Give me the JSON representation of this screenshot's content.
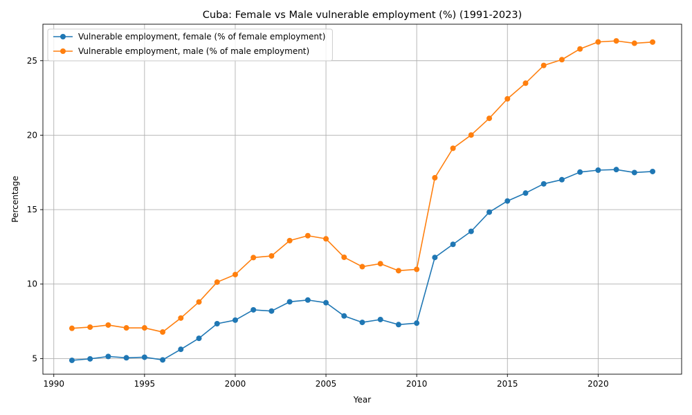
{
  "chart_data": {
    "type": "line",
    "title": "Cuba: Female vs Male vulnerable employment (%) (1991-2023)",
    "xlabel": "Year",
    "ylabel": "Percentage",
    "xlim": [
      1989.4,
      2024.6
    ],
    "ylim": [
      3.95,
      27.45
    ],
    "xticks": [
      1990,
      1995,
      2000,
      2005,
      2010,
      2015,
      2020
    ],
    "yticks": [
      5,
      10,
      15,
      20,
      25
    ],
    "grid": true,
    "legend_position": "top-left",
    "x": [
      1991,
      1992,
      1993,
      1994,
      1995,
      1996,
      1997,
      1998,
      1999,
      2000,
      2001,
      2002,
      2003,
      2004,
      2005,
      2006,
      2007,
      2008,
      2009,
      2010,
      2011,
      2012,
      2013,
      2014,
      2015,
      2016,
      2017,
      2018,
      2019,
      2020,
      2021,
      2022,
      2023
    ],
    "series": [
      {
        "name": "Vulnerable employment, female (% of female employment)",
        "color": "#1f77b4",
        "values": [
          4.88,
          4.98,
          5.14,
          5.05,
          5.09,
          4.91,
          5.62,
          6.36,
          7.34,
          7.58,
          8.27,
          8.19,
          8.81,
          8.93,
          8.75,
          7.86,
          7.43,
          7.62,
          7.28,
          7.38,
          11.79,
          12.67,
          13.54,
          14.83,
          15.58,
          16.11,
          16.73,
          17.01,
          17.52,
          17.65,
          17.69,
          17.49,
          17.56
        ]
      },
      {
        "name": "Vulnerable employment, male (% of male employment)",
        "color": "#ff7f0e",
        "values": [
          7.03,
          7.11,
          7.25,
          7.06,
          7.06,
          6.78,
          7.72,
          8.8,
          10.13,
          10.64,
          11.78,
          11.89,
          12.92,
          13.25,
          13.04,
          11.8,
          11.17,
          11.37,
          10.9,
          10.99,
          17.14,
          19.12,
          20.01,
          21.13,
          22.44,
          23.49,
          24.68,
          25.07,
          25.79,
          26.26,
          26.33,
          26.17,
          26.25
        ]
      }
    ]
  }
}
